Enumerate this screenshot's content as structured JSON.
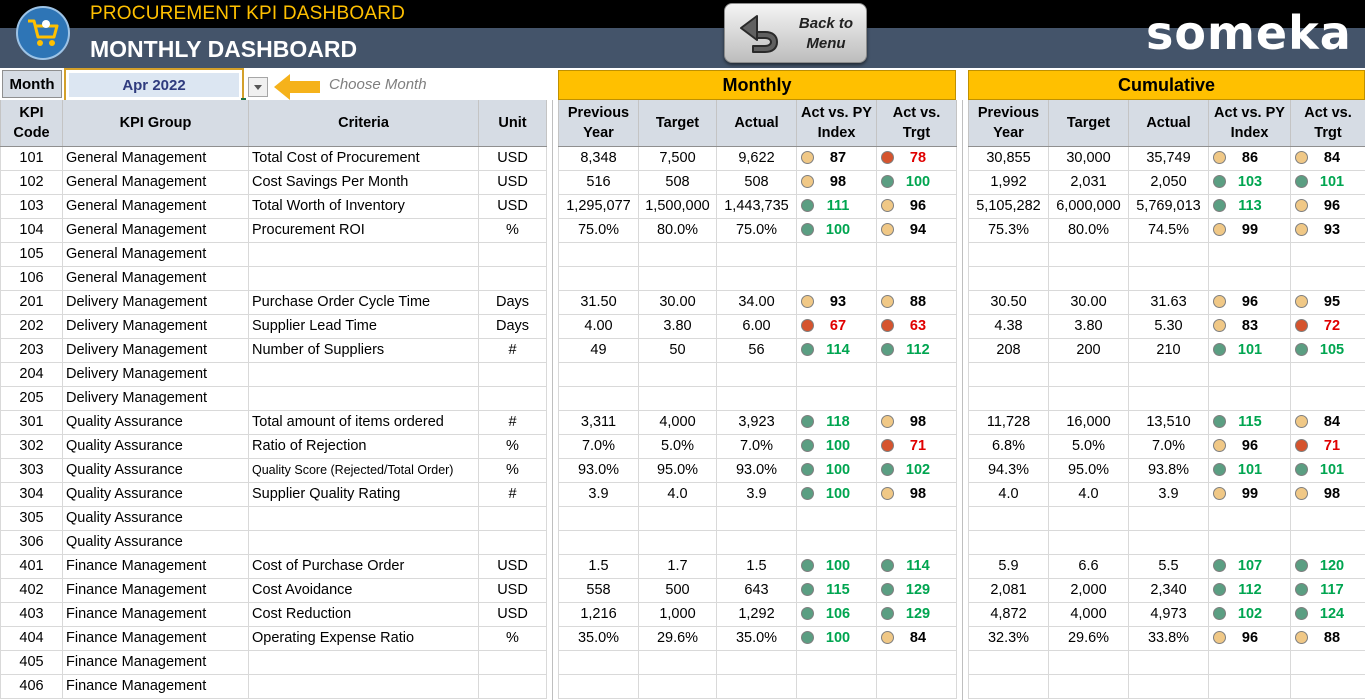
{
  "header": {
    "app_title": "PROCUREMENT KPI DASHBOARD",
    "page_title": "MONTHLY DASHBOARD",
    "back_button_line1": "Back to",
    "back_button_line2": "Menu",
    "brand": "someka"
  },
  "selector": {
    "label": "Month",
    "value": "Apr 2022",
    "hint": "Choose Month"
  },
  "sections": {
    "monthly": "Monthly",
    "cumulative": "Cumulative"
  },
  "columns": {
    "code_line1": "KPI",
    "code_line2": "Code",
    "group": "KPI Group",
    "criteria": "Criteria",
    "unit": "Unit",
    "prev_line1": "Previous",
    "prev_line2": "Year",
    "target": "Target",
    "actual": "Actual",
    "idx_py_line1": "Act vs. PY",
    "idx_py_line2": "Index",
    "idx_t_line1": "Act vs.",
    "idx_t_line2": "Trgt"
  },
  "colors": {
    "green": "#5b9e82",
    "amber": "#f0c886",
    "red": "#d5542e",
    "banner": "#ffc000",
    "header": "#44546a"
  },
  "rows": [
    {
      "code": "101",
      "group": "General Management",
      "criteria": "Total Cost of Procurement",
      "unit": "USD",
      "grp": true,
      "m": {
        "prev": "8,348",
        "target": "7,500",
        "actual": "9,622",
        "py": "87",
        "py_s": "amber",
        "t": "78",
        "t_s": "red"
      },
      "c": {
        "prev": "30,855",
        "target": "30,000",
        "actual": "35,749",
        "py": "86",
        "py_s": "amber",
        "t": "84",
        "t_s": "amber"
      }
    },
    {
      "code": "102",
      "group": "General Management",
      "criteria": "Cost Savings Per Month",
      "unit": "USD",
      "m": {
        "prev": "516",
        "target": "508",
        "actual": "508",
        "py": "98",
        "py_s": "amber",
        "t": "100",
        "t_s": "green"
      },
      "c": {
        "prev": "1,992",
        "target": "2,031",
        "actual": "2,050",
        "py": "103",
        "py_s": "green",
        "t": "101",
        "t_s": "green"
      }
    },
    {
      "code": "103",
      "group": "General Management",
      "criteria": "Total Worth of Inventory",
      "unit": "USD",
      "m": {
        "prev": "1,295,077",
        "target": "1,500,000",
        "actual": "1,443,735",
        "py": "111",
        "py_s": "green",
        "t": "96",
        "t_s": "amber"
      },
      "c": {
        "prev": "5,105,282",
        "target": "6,000,000",
        "actual": "5,769,013",
        "py": "113",
        "py_s": "green",
        "t": "96",
        "t_s": "amber"
      }
    },
    {
      "code": "104",
      "group": "General Management",
      "criteria": "Procurement ROI",
      "unit": "%",
      "m": {
        "prev": "75.0%",
        "target": "80.0%",
        "actual": "75.0%",
        "py": "100",
        "py_s": "green",
        "t": "94",
        "t_s": "amber"
      },
      "c": {
        "prev": "75.3%",
        "target": "80.0%",
        "actual": "74.5%",
        "py": "99",
        "py_s": "amber",
        "t": "93",
        "t_s": "amber"
      }
    },
    {
      "code": "105",
      "group": "General Management",
      "criteria": "",
      "unit": ""
    },
    {
      "code": "106",
      "group": "General Management",
      "criteria": "",
      "unit": ""
    },
    {
      "code": "201",
      "group": "Delivery Management",
      "criteria": "Purchase Order Cycle Time",
      "unit": "Days",
      "grp": true,
      "m": {
        "prev": "31.50",
        "target": "30.00",
        "actual": "34.00",
        "py": "93",
        "py_s": "amber",
        "t": "88",
        "t_s": "amber"
      },
      "c": {
        "prev": "30.50",
        "target": "30.00",
        "actual": "31.63",
        "py": "96",
        "py_s": "amber",
        "t": "95",
        "t_s": "amber"
      }
    },
    {
      "code": "202",
      "group": "Delivery Management",
      "criteria": "Supplier Lead Time",
      "unit": "Days",
      "m": {
        "prev": "4.00",
        "target": "3.80",
        "actual": "6.00",
        "py": "67",
        "py_s": "red",
        "t": "63",
        "t_s": "red"
      },
      "c": {
        "prev": "4.38",
        "target": "3.80",
        "actual": "5.30",
        "py": "83",
        "py_s": "amber",
        "t": "72",
        "t_s": "red"
      }
    },
    {
      "code": "203",
      "group": "Delivery Management",
      "criteria": "Number of Suppliers",
      "unit": "#",
      "m": {
        "prev": "49",
        "target": "50",
        "actual": "56",
        "py": "114",
        "py_s": "green",
        "t": "112",
        "t_s": "green"
      },
      "c": {
        "prev": "208",
        "target": "200",
        "actual": "210",
        "py": "101",
        "py_s": "green",
        "t": "105",
        "t_s": "green"
      }
    },
    {
      "code": "204",
      "group": "Delivery Management",
      "criteria": "",
      "unit": ""
    },
    {
      "code": "205",
      "group": "Delivery Management",
      "criteria": "",
      "unit": ""
    },
    {
      "code": "301",
      "group": "Quality Assurance",
      "criteria": "Total amount of items ordered",
      "unit": "#",
      "grp": true,
      "m": {
        "prev": "3,311",
        "target": "4,000",
        "actual": "3,923",
        "py": "118",
        "py_s": "green",
        "t": "98",
        "t_s": "amber"
      },
      "c": {
        "prev": "11,728",
        "target": "16,000",
        "actual": "13,510",
        "py": "115",
        "py_s": "green",
        "t": "84",
        "t_s": "amber"
      }
    },
    {
      "code": "302",
      "group": "Quality Assurance",
      "criteria": "Ratio of Rejection",
      "unit": "%",
      "m": {
        "prev": "7.0%",
        "target": "5.0%",
        "actual": "7.0%",
        "py": "100",
        "py_s": "green",
        "t": "71",
        "t_s": "red"
      },
      "c": {
        "prev": "6.8%",
        "target": "5.0%",
        "actual": "7.0%",
        "py": "96",
        "py_s": "amber",
        "t": "71",
        "t_s": "red"
      }
    },
    {
      "code": "303",
      "group": "Quality Assurance",
      "criteria": "Quality Score (Rejected/Total Order)",
      "unit": "%",
      "small": true,
      "m": {
        "prev": "93.0%",
        "target": "95.0%",
        "actual": "93.0%",
        "py": "100",
        "py_s": "green",
        "t": "102",
        "t_s": "green"
      },
      "c": {
        "prev": "94.3%",
        "target": "95.0%",
        "actual": "93.8%",
        "py": "101",
        "py_s": "green",
        "t": "101",
        "t_s": "green"
      }
    },
    {
      "code": "304",
      "group": "Quality Assurance",
      "criteria": "Supplier Quality Rating",
      "unit": "#",
      "m": {
        "prev": "3.9",
        "target": "4.0",
        "actual": "3.9",
        "py": "100",
        "py_s": "green",
        "t": "98",
        "t_s": "amber"
      },
      "c": {
        "prev": "4.0",
        "target": "4.0",
        "actual": "3.9",
        "py": "99",
        "py_s": "amber",
        "t": "98",
        "t_s": "amber"
      }
    },
    {
      "code": "305",
      "group": "Quality Assurance",
      "criteria": "",
      "unit": ""
    },
    {
      "code": "306",
      "group": "Quality Assurance",
      "criteria": "",
      "unit": ""
    },
    {
      "code": "401",
      "group": "Finance Management",
      "criteria": "Cost of Purchase Order",
      "unit": "USD",
      "grp": true,
      "m": {
        "prev": "1.5",
        "target": "1.7",
        "actual": "1.5",
        "py": "100",
        "py_s": "green",
        "t": "114",
        "t_s": "green"
      },
      "c": {
        "prev": "5.9",
        "target": "6.6",
        "actual": "5.5",
        "py": "107",
        "py_s": "green",
        "t": "120",
        "t_s": "green"
      }
    },
    {
      "code": "402",
      "group": "Finance Management",
      "criteria": "Cost Avoidance",
      "unit": "USD",
      "m": {
        "prev": "558",
        "target": "500",
        "actual": "643",
        "py": "115",
        "py_s": "green",
        "t": "129",
        "t_s": "green"
      },
      "c": {
        "prev": "2,081",
        "target": "2,000",
        "actual": "2,340",
        "py": "112",
        "py_s": "green",
        "t": "117",
        "t_s": "green"
      }
    },
    {
      "code": "403",
      "group": "Finance Management",
      "criteria": "Cost Reduction",
      "unit": "USD",
      "m": {
        "prev": "1,216",
        "target": "1,000",
        "actual": "1,292",
        "py": "106",
        "py_s": "green",
        "t": "129",
        "t_s": "green"
      },
      "c": {
        "prev": "4,872",
        "target": "4,000",
        "actual": "4,973",
        "py": "102",
        "py_s": "green",
        "t": "124",
        "t_s": "green"
      }
    },
    {
      "code": "404",
      "group": "Finance Management",
      "criteria": "Operating Expense Ratio",
      "unit": "%",
      "m": {
        "prev": "35.0%",
        "target": "29.6%",
        "actual": "35.0%",
        "py": "100",
        "py_s": "green",
        "t": "84",
        "t_s": "amber"
      },
      "c": {
        "prev": "32.3%",
        "target": "29.6%",
        "actual": "33.8%",
        "py": "96",
        "py_s": "amber",
        "t": "88",
        "t_s": "amber"
      }
    },
    {
      "code": "405",
      "group": "Finance Management",
      "criteria": "",
      "unit": ""
    },
    {
      "code": "406",
      "group": "Finance Management",
      "criteria": "",
      "unit": ""
    }
  ]
}
